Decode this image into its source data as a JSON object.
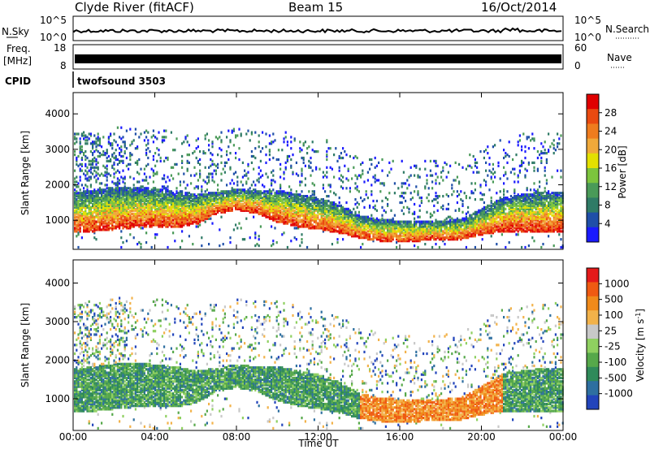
{
  "header": {
    "station": "Clyde River (fitACF)",
    "beam": "Beam 15",
    "date": "16/Oct/2014"
  },
  "aux_panels": {
    "nsky_label": "N.Sky",
    "nsearch_label": "N.Search",
    "freq_label_1": "Freq.",
    "freq_label_2": "[MHz]",
    "nave_label": "Nave",
    "cpid_label": "CPID",
    "cpid_value": "twofsound 3503",
    "noise_ticks_left": [
      "10^5",
      "10^0"
    ],
    "noise_ticks_right": [
      "10^5",
      "10^0"
    ],
    "freq_ticks_left": [
      "18",
      "8"
    ],
    "nave_ticks_right": [
      "60",
      "0"
    ]
  },
  "chart_data": [
    {
      "type": "heatmap",
      "title": "",
      "xlabel": "Time UT",
      "ylabel": "Slant Range [km]",
      "x_ticks": [
        "00:00",
        "04:00",
        "08:00",
        "12:00",
        "16:00",
        "20:00",
        "00:00"
      ],
      "x_range_hours": [
        0,
        24
      ],
      "y_ticks": [
        1000,
        2000,
        3000,
        4000
      ],
      "ylim": [
        180,
        4600
      ],
      "colorbar": {
        "label": "Power [dB]",
        "ticks": [
          "4",
          "8",
          "12",
          "16",
          "20",
          "24",
          "28"
        ],
        "colors": [
          "#1a1aff",
          "#1f4fa8",
          "#2f7b66",
          "#4a9a58",
          "#7cc43d",
          "#e3e000",
          "#f0a93a",
          "#ef7c1e",
          "#ea4a10",
          "#e00000"
        ]
      },
      "echo_band": [
        {
          "t": 0,
          "lo": 620,
          "hi": 1750
        },
        {
          "t": 1,
          "lo": 640,
          "hi": 1800
        },
        {
          "t": 2,
          "lo": 700,
          "hi": 1900
        },
        {
          "t": 3,
          "lo": 750,
          "hi": 1900
        },
        {
          "t": 4,
          "lo": 780,
          "hi": 1850
        },
        {
          "t": 5,
          "lo": 750,
          "hi": 1800
        },
        {
          "t": 6,
          "lo": 850,
          "hi": 1700
        },
        {
          "t": 7,
          "lo": 1150,
          "hi": 1750
        },
        {
          "t": 8,
          "lo": 1250,
          "hi": 1850
        },
        {
          "t": 9,
          "lo": 1150,
          "hi": 1800
        },
        {
          "t": 10,
          "lo": 900,
          "hi": 1800
        },
        {
          "t": 11,
          "lo": 780,
          "hi": 1700
        },
        {
          "t": 12,
          "lo": 700,
          "hi": 1600
        },
        {
          "t": 13,
          "lo": 600,
          "hi": 1400
        },
        {
          "t": 14,
          "lo": 450,
          "hi": 1100
        },
        {
          "t": 15,
          "lo": 380,
          "hi": 1000
        },
        {
          "t": 16,
          "lo": 350,
          "hi": 950
        },
        {
          "t": 17,
          "lo": 380,
          "hi": 950
        },
        {
          "t": 18,
          "lo": 400,
          "hi": 950
        },
        {
          "t": 19,
          "lo": 420,
          "hi": 1000
        },
        {
          "t": 20,
          "lo": 550,
          "hi": 1300
        },
        {
          "t": 21,
          "lo": 650,
          "hi": 1600
        },
        {
          "t": 22,
          "lo": 650,
          "hi": 1700
        },
        {
          "t": 23,
          "lo": 650,
          "hi": 1750
        },
        {
          "t": 24,
          "lo": 650,
          "hi": 1750
        }
      ]
    },
    {
      "type": "heatmap",
      "title": "",
      "xlabel": "Time UT",
      "ylabel": "Slant Range [km]",
      "x_ticks": [
        "00:00",
        "04:00",
        "08:00",
        "12:00",
        "16:00",
        "20:00",
        "00:00"
      ],
      "x_range_hours": [
        0,
        24
      ],
      "y_ticks": [
        1000,
        2000,
        3000,
        4000
      ],
      "ylim": [
        180,
        4600
      ],
      "colorbar": {
        "label": "Velocity [m s^-1]",
        "ticks": [
          "1000",
          "500",
          "100",
          "25",
          "-25",
          "-100",
          "-500",
          "-1000"
        ],
        "colors": [
          "#2244bb",
          "#2e6fa0",
          "#2f8a5a",
          "#56a84a",
          "#8fd060",
          "#c8c8c8",
          "#f2b24a",
          "#f08a1a",
          "#ef5a12",
          "#e41a1a"
        ]
      }
    }
  ]
}
